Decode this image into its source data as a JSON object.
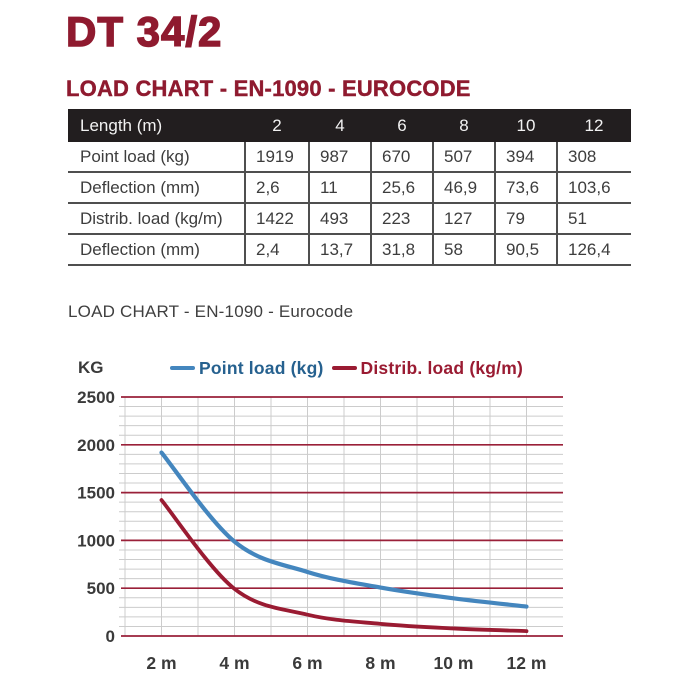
{
  "page": {
    "title": "DT 34/2",
    "subtitle": "LOAD CHART - EN-1090 - EUROCODE",
    "chart_caption": "LOAD CHART - EN-1090 - Eurocode"
  },
  "colors": {
    "brand_red": "#8f1a2f",
    "table_header_bg": "#221e1f",
    "table_header_text": "#f2f2f2",
    "text_dark": "#3d3d3d",
    "grid_minor": "#cccccc",
    "grid_major": "#9a2039",
    "point_load_line": "#4486be",
    "point_load_text": "#26618f",
    "distrib_load_line": "#9a1b32",
    "distrib_load_text": "#9a1b32"
  },
  "table": {
    "header": [
      "Length (m)",
      "2",
      "4",
      "6",
      "8",
      "10",
      "12"
    ],
    "rows": [
      {
        "label": "Point load (kg)",
        "values": [
          "1919",
          "987",
          "670",
          "507",
          "394",
          "308"
        ]
      },
      {
        "label": "Deflection (mm)",
        "values": [
          "2,6",
          "11",
          "25,6",
          "46,9",
          "73,6",
          "103,6"
        ]
      },
      {
        "label": "Distrib. load (kg/m)",
        "values": [
          "1422",
          "493",
          "223",
          "127",
          "79",
          "51"
        ]
      },
      {
        "label": "Deflection (mm)",
        "values": [
          "2,4",
          "13,7",
          "31,8",
          "58",
          "90,5",
          "126,4"
        ]
      }
    ]
  },
  "chart_data": {
    "type": "line",
    "title": "LOAD CHART - EN-1090 - Eurocode",
    "ylabel": "KG",
    "x": [
      2,
      4,
      6,
      8,
      10,
      12
    ],
    "x_tick_labels": [
      "2 m",
      "4 m",
      "6 m",
      "8 m",
      "10 m",
      "12 m"
    ],
    "series": [
      {
        "name": "Point load (kg)",
        "color": "#4486be",
        "values": [
          1919,
          987,
          670,
          507,
          394,
          308
        ]
      },
      {
        "name": "Distrib. load (kg/m)",
        "color": "#9a1b32",
        "values": [
          1422,
          493,
          223,
          127,
          79,
          51
        ]
      }
    ],
    "xlim": [
      1,
      13
    ],
    "ylim": [
      0,
      2500
    ],
    "y_ticks": [
      0,
      500,
      1000,
      1500,
      2000,
      2500
    ],
    "y_minor_step": 100,
    "x_minor_step": 1,
    "grid": true,
    "legend_position": "top"
  }
}
